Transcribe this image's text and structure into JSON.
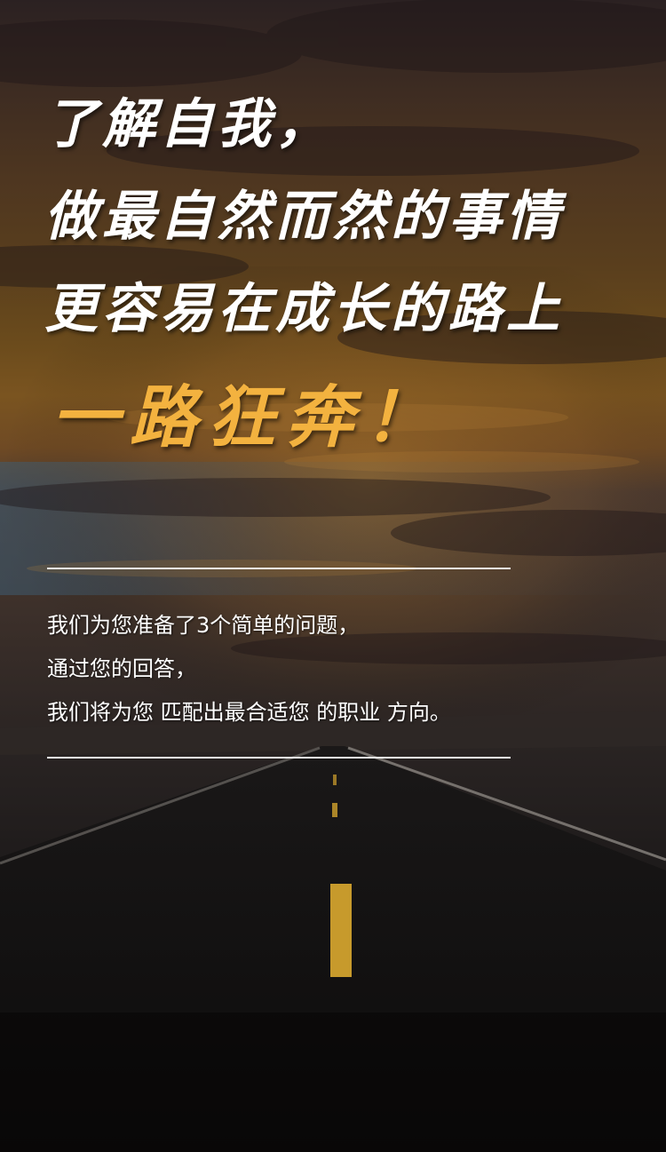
{
  "headline": {
    "lines": [
      "了解自我，",
      "做最自然而然的事情",
      "更容易在成长的路上"
    ],
    "accent": "一路狂奔！"
  },
  "intro": {
    "lines": [
      "我们为您准备了3个简单的问题，",
      "通过您的回答，",
      "我们将为您 匹配出最合适您 的职业 方向。"
    ]
  },
  "colors": {
    "headline": "#ffffff",
    "accent": "#f3b23f",
    "rule": "#f2f2f2",
    "body_text": "#ffffff"
  }
}
